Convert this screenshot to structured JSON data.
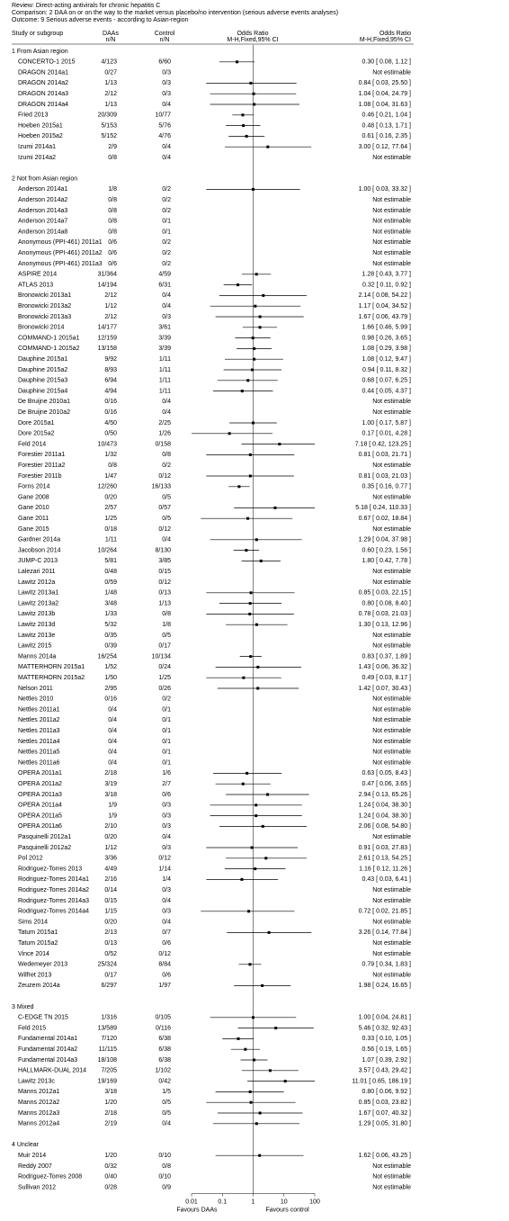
{
  "chart_data": {
    "type": "forest",
    "review": "Review:  Direct-acting antivirals for chronic hepatitis C",
    "comparison": "Comparison:  2 DAA on or on the way to the market versus placebo/no intervention (serious adverse events analyses)",
    "outcome": "Outcome:  9 Serious adverse events - according to Asian-region",
    "columns": [
      "Study or subgroup",
      "DAAs",
      "n/N",
      "Control",
      "n/N",
      "Odds Ratio",
      "M-H,Fixed,95% CI",
      "Odds Ratio",
      "M-H,Fixed,95% CI"
    ],
    "xscale": "log",
    "xlim": [
      0.01,
      100
    ],
    "xticks": [
      0.01,
      0.1,
      1,
      10,
      100
    ],
    "null_line": 1,
    "favours_left": "Favours DAAs",
    "favours_right": "Favours control",
    "color": "#000000",
    "groups": [
      {
        "name": "1 From Asian region",
        "rows": [
          [
            "CONCERTO-1 2015",
            "4/123",
            "6/60",
            "0.30 [ 0.08, 1.12 ]",
            0.3,
            0.08,
            1.12
          ],
          [
            "DRAGON 2014a1",
            "0/27",
            "0/3",
            "Not estimable",
            null,
            null,
            null
          ],
          [
            "DRAGON 2014a2",
            "1/13",
            "0/3",
            "0.84 [ 0.03, 25.50 ]",
            0.84,
            0.03,
            25.5
          ],
          [
            "DRAGON 2014a3",
            "2/12",
            "0/3",
            "1.04 [ 0.04, 24.79 ]",
            1.04,
            0.04,
            24.79
          ],
          [
            "DRAGON 2014a4",
            "1/13",
            "0/4",
            "1.08 [ 0.04, 31.63 ]",
            1.08,
            0.04,
            31.63
          ],
          [
            "Fried 2013",
            "20/309",
            "10/77",
            "0.46 [ 0.21, 1.04 ]",
            0.46,
            0.21,
            1.04
          ],
          [
            "Hoeben 2015a1",
            "5/153",
            "5/76",
            "0.48 [ 0.13, 1.71 ]",
            0.48,
            0.13,
            1.71
          ],
          [
            "Hoeben 2015a2",
            "5/152",
            "4/76",
            "0.61 [ 0.16, 2.35 ]",
            0.61,
            0.16,
            2.35
          ],
          [
            "Izumi 2014a1",
            "2/9",
            "0/4",
            "3.00 [ 0.12, 77.64 ]",
            3.0,
            0.12,
            77.64
          ],
          [
            "Izumi 2014a2",
            "0/8",
            "0/4",
            "Not estimable",
            null,
            null,
            null
          ]
        ]
      },
      {
        "name": "2 Not from Asian region",
        "rows": [
          [
            "Anderson 2014a1",
            "1/8",
            "0/2",
            "1.00 [ 0.03, 33.32 ]",
            1.0,
            0.03,
            33.32
          ],
          [
            "Anderson 2014a2",
            "0/8",
            "0/2",
            "Not estimable",
            null,
            null,
            null
          ],
          [
            "Anderson 2014a3",
            "0/8",
            "0/2",
            "Not estimable",
            null,
            null,
            null
          ],
          [
            "Anderson 2014a7",
            "0/8",
            "0/1",
            "Not estimable",
            null,
            null,
            null
          ],
          [
            "Anderson 2014a8",
            "0/8",
            "0/1",
            "Not estimable",
            null,
            null,
            null
          ],
          [
            "Anonymous (PPI-461) 2011a1",
            "0/6",
            "0/2",
            "Not estimable",
            null,
            null,
            null
          ],
          [
            "Anonymous (PPI-461) 2011a2",
            "0/6",
            "0/2",
            "Not estimable",
            null,
            null,
            null
          ],
          [
            "Anonymous (PPI-461) 2011a3",
            "0/6",
            "0/2",
            "Not estimable",
            null,
            null,
            null
          ],
          [
            "ASPIRE 2014",
            "31/364",
            "4/59",
            "1.28 [ 0.43, 3.77 ]",
            1.28,
            0.43,
            3.77
          ],
          [
            "ATLAS 2013",
            "14/194",
            "6/31",
            "0.32 [ 0.11, 0.92 ]",
            0.32,
            0.11,
            0.92
          ],
          [
            "Bronowicki 2013a1",
            "2/12",
            "0/4",
            "2.14 [ 0.08, 54.22 ]",
            2.14,
            0.08,
            54.22
          ],
          [
            "Bronowicki 2013a2",
            "1/12",
            "0/4",
            "1.17 [ 0.04, 34.52 ]",
            1.17,
            0.04,
            34.52
          ],
          [
            "Bronowicki 2013a3",
            "2/12",
            "0/3",
            "1.67 [ 0.06, 43.79 ]",
            1.67,
            0.06,
            43.79
          ],
          [
            "Bronowicki 2014",
            "14/177",
            "3/61",
            "1.66 [ 0.46, 5.99 ]",
            1.66,
            0.46,
            5.99
          ],
          [
            "COMMAND-1 2015a1",
            "12/159",
            "3/39",
            "0.98 [ 0.26, 3.65 ]",
            0.98,
            0.26,
            3.65
          ],
          [
            "COMMAND-1 2015a2",
            "13/158",
            "3/39",
            "1.08 [ 0.29, 3.98 ]",
            1.08,
            0.29,
            3.98
          ],
          [
            "Dauphine 2015a1",
            "9/92",
            "1/11",
            "1.08 [ 0.12, 9.47 ]",
            1.08,
            0.12,
            9.47
          ],
          [
            "Dauphine 2015a2",
            "8/93",
            "1/11",
            "0.94 [ 0.11, 8.32 ]",
            0.94,
            0.11,
            8.32
          ],
          [
            "Dauphine 2015a3",
            "6/94",
            "1/11",
            "0.68 [ 0.07, 6.25 ]",
            0.68,
            0.07,
            6.25
          ],
          [
            "Dauphine 2015a4",
            "4/94",
            "1/11",
            "0.44 [ 0.05, 4.37 ]",
            0.44,
            0.05,
            4.37
          ],
          [
            "De Bruijne 2010a1",
            "0/16",
            "0/4",
            "Not estimable",
            null,
            null,
            null
          ],
          [
            "De Bruijne 2010a2",
            "0/16",
            "0/4",
            "Not estimable",
            null,
            null,
            null
          ],
          [
            "Dore 2015a1",
            "4/50",
            "2/25",
            "1.00 [ 0.17, 5.87 ]",
            1.0,
            0.17,
            5.87
          ],
          [
            "Dore 2015a2",
            "0/50",
            "1/26",
            "0.17 [ 0.01, 4.28 ]",
            0.17,
            0.01,
            4.28
          ],
          [
            "Feld 2014",
            "10/473",
            "0/158",
            "7.18 [ 0.42, 123.25 ]",
            7.18,
            0.42,
            123.25
          ],
          [
            "Forestier 2011a1",
            "1/32",
            "0/8",
            "0.81 [ 0.03, 21.71 ]",
            0.81,
            0.03,
            21.71
          ],
          [
            "Forestier 2011a2",
            "0/8",
            "0/2",
            "Not estimable",
            null,
            null,
            null
          ],
          [
            "Forestier 2011b",
            "1/47",
            "0/12",
            "0.81 [ 0.03, 21.03 ]",
            0.81,
            0.03,
            21.03
          ],
          [
            "Forns 2014",
            "12/260",
            "16/133",
            "0.35 [ 0.16, 0.77 ]",
            0.35,
            0.16,
            0.77
          ],
          [
            "Gane 2008",
            "0/20",
            "0/5",
            "Not estimable",
            null,
            null,
            null
          ],
          [
            "Gane 2010",
            "2/57",
            "0/57",
            "5.18 [ 0.24, 110.33 ]",
            5.18,
            0.24,
            110.33
          ],
          [
            "Gane 2011",
            "1/25",
            "0/5",
            "0.67 [ 0.02, 18.84 ]",
            0.67,
            0.02,
            18.84
          ],
          [
            "Gane 2015",
            "0/18",
            "0/12",
            "Not estimable",
            null,
            null,
            null
          ],
          [
            "Gardner 2014a",
            "1/11",
            "0/4",
            "1.29 [ 0.04, 37.98 ]",
            1.29,
            0.04,
            37.98
          ],
          [
            "Jacobson 2014",
            "10/264",
            "8/130",
            "0.60 [ 0.23, 1.56 ]",
            0.6,
            0.23,
            1.56
          ],
          [
            "JUMP-C 2013",
            "5/81",
            "3/85",
            "1.80 [ 0.42, 7.78 ]",
            1.8,
            0.42,
            7.78
          ],
          [
            "Lalezari 2011",
            "0/48",
            "0/15",
            "Not estimable",
            null,
            null,
            null
          ],
          [
            "Lawitz 2012a",
            "0/59",
            "0/12",
            "Not estimable",
            null,
            null,
            null
          ],
          [
            "Lawitz 2013a1",
            "1/48",
            "0/13",
            "0.85 [ 0.03, 22.15 ]",
            0.85,
            0.03,
            22.15
          ],
          [
            "Lawitz 2013a2",
            "3/48",
            "1/13",
            "0.80 [ 0.08, 8.40 ]",
            0.8,
            0.08,
            8.4
          ],
          [
            "Lawitz 2013b",
            "1/33",
            "0/8",
            "0.78 [ 0.03, 21.03 ]",
            0.78,
            0.03,
            21.03
          ],
          [
            "Lawitz 2013d",
            "5/32",
            "1/8",
            "1.30 [ 0.13, 12.96 ]",
            1.3,
            0.13,
            12.96
          ],
          [
            "Lawitz 2013e",
            "0/35",
            "0/5",
            "Not estimable",
            null,
            null,
            null
          ],
          [
            "Lawitz 2015",
            "0/39",
            "0/17",
            "Not estimable",
            null,
            null,
            null
          ],
          [
            "Manns 2014a",
            "16/254",
            "10/134",
            "0.83 [ 0.37, 1.89 ]",
            0.83,
            0.37,
            1.89
          ],
          [
            "MATTERHORN 2015a1",
            "1/52",
            "0/24",
            "1.43 [ 0.06, 36.32 ]",
            1.43,
            0.06,
            36.32
          ],
          [
            "MATTERHORN 2015a2",
            "1/50",
            "1/25",
            "0.49 [ 0.03, 8.17 ]",
            0.49,
            0.03,
            8.17
          ],
          [
            "Nelson 2011",
            "2/95",
            "0/26",
            "1.42 [ 0.07, 30.43 ]",
            1.42,
            0.07,
            30.43
          ],
          [
            "Nettles 2010",
            "0/16",
            "0/2",
            "Not estimable",
            null,
            null,
            null
          ],
          [
            "Nettles 2011a1",
            "0/4",
            "0/1",
            "Not estimable",
            null,
            null,
            null
          ],
          [
            "Nettles 2011a2",
            "0/4",
            "0/1",
            "Not estimable",
            null,
            null,
            null
          ],
          [
            "Nettles 2011a3",
            "0/4",
            "0/1",
            "Not estimable",
            null,
            null,
            null
          ],
          [
            "Nettles 2011a4",
            "0/4",
            "0/1",
            "Not estimable",
            null,
            null,
            null
          ],
          [
            "Nettles 2011a5",
            "0/4",
            "0/1",
            "Not estimable",
            null,
            null,
            null
          ],
          [
            "Nettles 2011a6",
            "0/4",
            "0/1",
            "Not estimable",
            null,
            null,
            null
          ],
          [
            "OPERA 2011a1",
            "2/18",
            "1/6",
            "0.63 [ 0.05, 8.43 ]",
            0.63,
            0.05,
            8.43
          ],
          [
            "OPERA 2011a2",
            "3/19",
            "2/7",
            "0.47 [ 0.06, 3.65 ]",
            0.47,
            0.06,
            3.65
          ],
          [
            "OPERA 2011a3",
            "3/18",
            "0/6",
            "2.94 [ 0.13, 65.26 ]",
            2.94,
            0.13,
            65.26
          ],
          [
            "OPERA 2011a4",
            "1/9",
            "0/3",
            "1.24 [ 0.04, 38.30 ]",
            1.24,
            0.04,
            38.3
          ],
          [
            "OPERA 2011a5",
            "1/9",
            "0/3",
            "1.24 [ 0.04, 38.30 ]",
            1.24,
            0.04,
            38.3
          ],
          [
            "OPERA 2011a6",
            "2/10",
            "0/3",
            "2.06 [ 0.08, 54.80 ]",
            2.06,
            0.08,
            54.8
          ],
          [
            "Pasquinelli 2012a1",
            "0/20",
            "0/4",
            "Not estimable",
            null,
            null,
            null
          ],
          [
            "Pasquinelli 2012a2",
            "1/12",
            "0/3",
            "0.91 [ 0.03, 27.83 ]",
            0.91,
            0.03,
            27.83
          ],
          [
            "Pol 2012",
            "3/36",
            "0/12",
            "2.61 [ 0.13, 54.25 ]",
            2.61,
            0.13,
            54.25
          ],
          [
            "Rodriguez-Torres 2013",
            "4/49",
            "1/14",
            "1.16 [ 0.12, 11.26 ]",
            1.16,
            0.12,
            11.26
          ],
          [
            "Rodriguez-Torres 2014a1",
            "2/16",
            "1/4",
            "0.43 [ 0.03, 6.41 ]",
            0.43,
            0.03,
            6.41
          ],
          [
            "Rodriguez-Torres 2014a2",
            "0/14",
            "0/3",
            "Not estimable",
            null,
            null,
            null
          ],
          [
            "Rodriguez-Torres 2014a3",
            "0/15",
            "0/4",
            "Not estimable",
            null,
            null,
            null
          ],
          [
            "Rodriguez-Torres 2014a4",
            "1/15",
            "0/3",
            "0.72 [ 0.02, 21.85 ]",
            0.72,
            0.02,
            21.85
          ],
          [
            "Sims 2014",
            "0/20",
            "0/4",
            "Not estimable",
            null,
            null,
            null
          ],
          [
            "Tatum 2015a1",
            "2/13",
            "0/7",
            "3.26 [ 0.14, 77.84 ]",
            3.26,
            0.14,
            77.84
          ],
          [
            "Tatum 2015a2",
            "0/13",
            "0/6",
            "Not estimable",
            null,
            null,
            null
          ],
          [
            "Vince 2014",
            "0/52",
            "0/12",
            "Not estimable",
            null,
            null,
            null
          ],
          [
            "Wedemeyer 2013",
            "25/324",
            "8/84",
            "0.79 [ 0.34, 1.83 ]",
            0.79,
            0.34,
            1.83
          ],
          [
            "Wilfret 2013",
            "0/17",
            "0/6",
            "Not estimable",
            null,
            null,
            null
          ],
          [
            "Zeuzem 2014a",
            "6/297",
            "1/97",
            "1.98 [ 0.24, 16.65 ]",
            1.98,
            0.24,
            16.65
          ]
        ]
      },
      {
        "name": "3 Mixed",
        "rows": [
          [
            "C-EDGE TN 2015",
            "1/316",
            "0/105",
            "1.00 [ 0.04, 24.81 ]",
            1.0,
            0.04,
            24.81
          ],
          [
            "Feld 2015",
            "13/589",
            "0/116",
            "5.46 [ 0.32, 92.43 ]",
            5.46,
            0.32,
            92.43
          ],
          [
            "Fundamental 2014a1",
            "7/120",
            "6/38",
            "0.33 [ 0.10, 1.05 ]",
            0.33,
            0.1,
            1.05
          ],
          [
            "Fundamental 2014a2",
            "11/115",
            "6/38",
            "0.56 [ 0.19, 1.65 ]",
            0.56,
            0.19,
            1.65
          ],
          [
            "Fundamental 2014a3",
            "18/108",
            "6/38",
            "1.07 [ 0.39, 2.92 ]",
            1.07,
            0.39,
            2.92
          ],
          [
            "HALLMARK-DUAL 2014",
            "7/205",
            "1/102",
            "3.57 [ 0.43, 29.42 ]",
            3.57,
            0.43,
            29.42
          ],
          [
            "Lawitz 2013c",
            "19/169",
            "0/42",
            "11.01 [ 0.65, 186.19 ]",
            11.01,
            0.65,
            186.19
          ],
          [
            "Manns 2012a1",
            "3/18",
            "1/5",
            "0.80 [ 0.06, 9.92 ]",
            0.8,
            0.06,
            9.92
          ],
          [
            "Manns 2012a2",
            "1/20",
            "0/5",
            "0.85 [ 0.03, 23.82 ]",
            0.85,
            0.03,
            23.82
          ],
          [
            "Manns 2012a3",
            "2/18",
            "0/5",
            "1.67 [ 0.07, 40.32 ]",
            1.67,
            0.07,
            40.32
          ],
          [
            "Manns 2012a4",
            "2/19",
            "0/4",
            "1.29 [ 0.05, 31.80 ]",
            1.29,
            0.05,
            31.8
          ]
        ]
      },
      {
        "name": "4 Unclear",
        "rows": [
          [
            "Muir 2014",
            "1/20",
            "0/10",
            "1.62 [ 0.06, 43.25 ]",
            1.62,
            0.06,
            43.25
          ],
          [
            "Reddy 2007",
            "0/32",
            "0/8",
            "Not estimable",
            null,
            null,
            null
          ],
          [
            "Rodriguez-Torres 2008",
            "0/40",
            "0/10",
            "Not estimable",
            null,
            null,
            null
          ],
          [
            "Sullivan 2012",
            "0/28",
            "0/9",
            "Not estimable",
            null,
            null,
            null
          ]
        ]
      }
    ]
  }
}
